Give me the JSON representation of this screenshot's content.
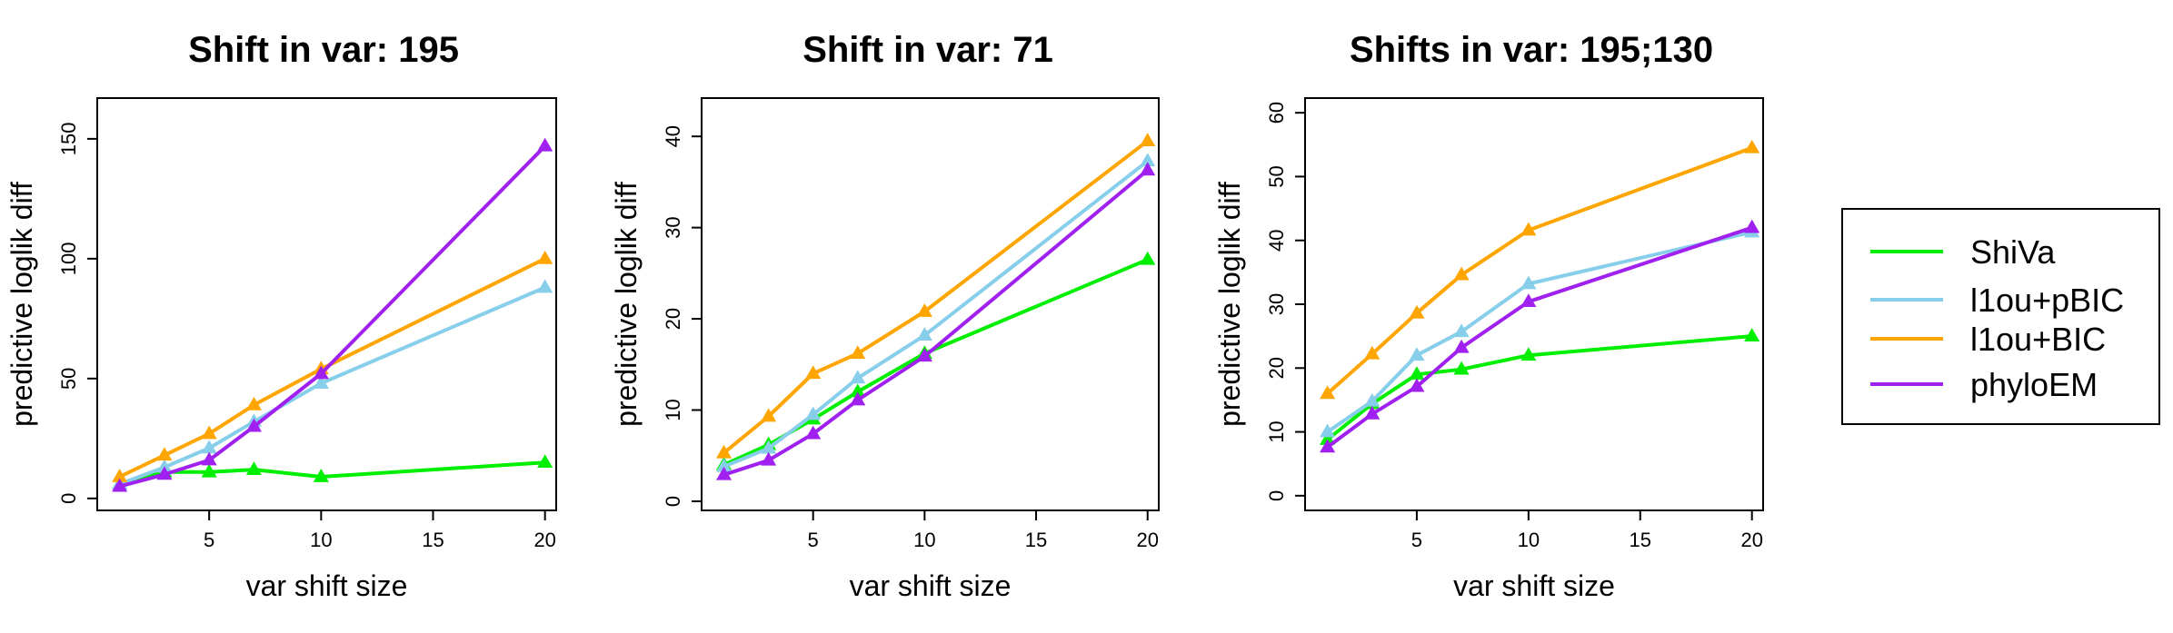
{
  "chart_data": [
    {
      "type": "line",
      "title": "Shift in var: 195",
      "xlabel": "var shift size",
      "ylabel": "predictive loglik diff",
      "x": [
        1,
        3,
        5,
        7,
        10,
        20
      ],
      "xlim": [
        0,
        20.5
      ],
      "ylim": [
        -5,
        167
      ],
      "xticks": [
        5,
        10,
        15,
        20
      ],
      "yticks": [
        0,
        50,
        100,
        150
      ],
      "series": [
        {
          "name": "ShiVa",
          "values": [
            6,
            11,
            11,
            12,
            9,
            15
          ]
        },
        {
          "name": "l1ou+pBIC",
          "values": [
            6,
            13,
            21,
            32,
            48,
            88
          ]
        },
        {
          "name": "l1ou+BIC",
          "values": [
            9,
            18,
            27,
            39,
            54,
            100
          ]
        },
        {
          "name": "phyloEM",
          "values": [
            5,
            10,
            16,
            30,
            52,
            147
          ]
        }
      ]
    },
    {
      "type": "line",
      "title": "Shift in var: 71",
      "xlabel": "var shift size",
      "ylabel": "predictive loglik diff",
      "x": [
        1,
        3,
        5,
        7,
        10,
        20
      ],
      "xlim": [
        0,
        20.5
      ],
      "ylim": [
        -1,
        44.2
      ],
      "xticks": [
        5,
        10,
        15,
        20
      ],
      "yticks": [
        0,
        10,
        20,
        30,
        40
      ],
      "series": [
        {
          "name": "ShiVa",
          "values": [
            4,
            6.2,
            9,
            12,
            16.2,
            26.5
          ]
        },
        {
          "name": "l1ou+pBIC",
          "values": [
            3.8,
            5.8,
            9.5,
            13.5,
            18.2,
            37.3
          ]
        },
        {
          "name": "l1ou+BIC",
          "values": [
            5.3,
            9.3,
            14,
            16.2,
            20.8,
            39.5
          ]
        },
        {
          "name": "phyloEM",
          "values": [
            2.9,
            4.5,
            7.4,
            11.1,
            15.9,
            36.3
          ]
        }
      ]
    },
    {
      "type": "line",
      "title": "Shifts in var: 195;130",
      "xlabel": "var shift size",
      "ylabel": "predictive loglik diff",
      "x": [
        1,
        3,
        5,
        7,
        10,
        20
      ],
      "xlim": [
        0,
        20.5
      ],
      "ylim": [
        -2.3,
        62.3
      ],
      "xticks": [
        5,
        10,
        15,
        20
      ],
      "yticks": [
        0,
        10,
        20,
        30,
        40,
        50,
        60
      ],
      "series": [
        {
          "name": "ShiVa",
          "values": [
            8.8,
            14.4,
            19,
            19.8,
            22,
            25
          ]
        },
        {
          "name": "l1ou+pBIC",
          "values": [
            10,
            14.8,
            22,
            25.7,
            33.2,
            41.3
          ]
        },
        {
          "name": "l1ou+BIC",
          "values": [
            16,
            22.2,
            28.6,
            34.6,
            41.6,
            54.5
          ]
        },
        {
          "name": "phyloEM",
          "values": [
            7.6,
            12.8,
            17.1,
            23.2,
            30.4,
            42
          ]
        }
      ]
    }
  ],
  "legend": {
    "entries": [
      "ShiVa",
      "l1ou+pBIC",
      "l1ou+BIC",
      "phyloEM"
    ],
    "colors": [
      "#00ee00",
      "#87ceeb",
      "#ffa500",
      "#a020f0"
    ]
  }
}
